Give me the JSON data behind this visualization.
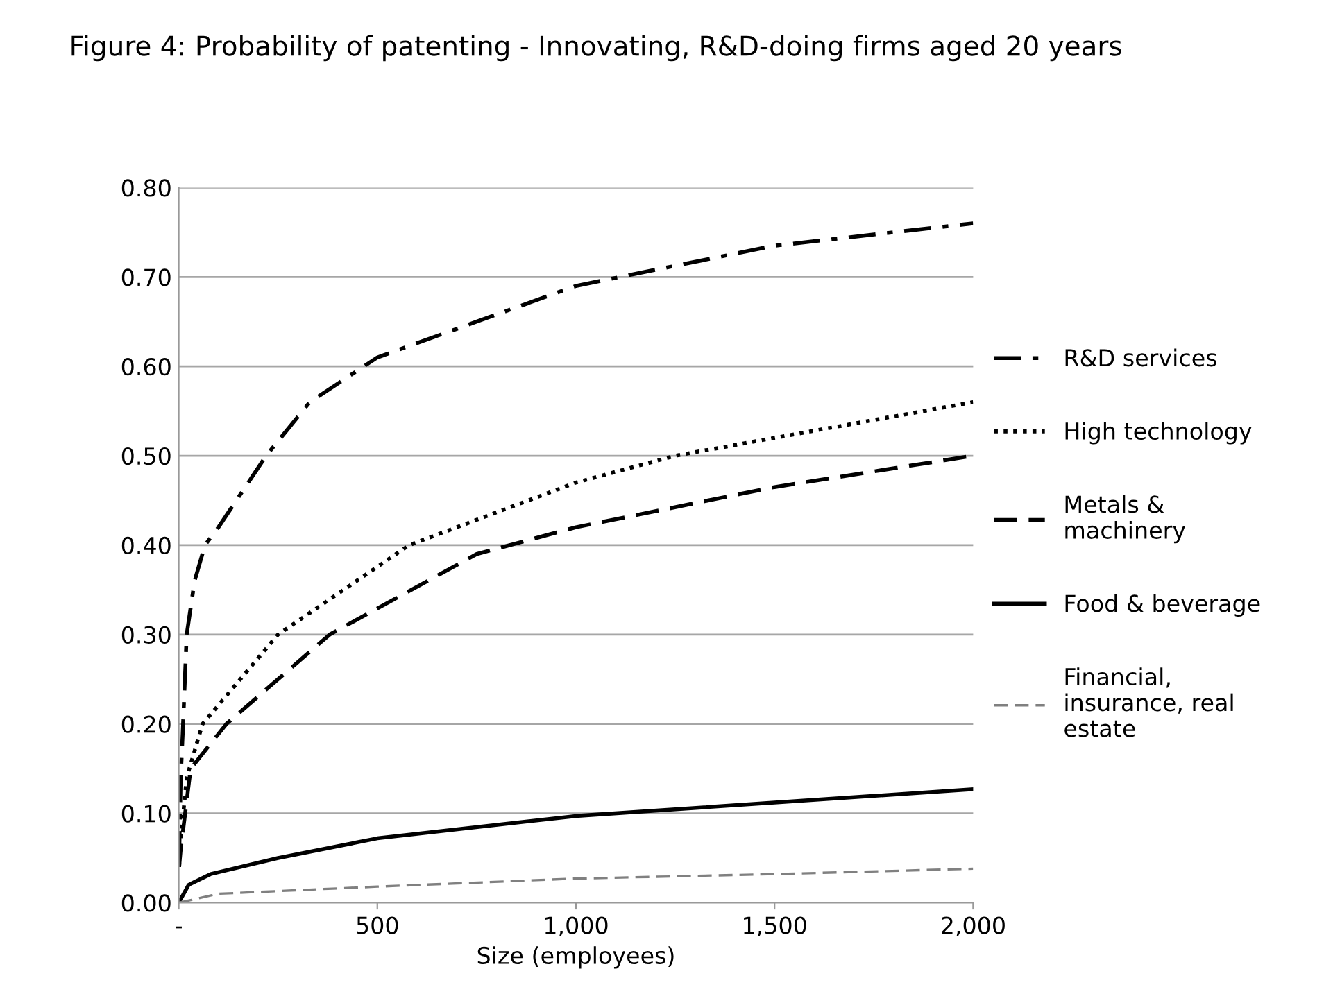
{
  "chart_data": {
    "type": "line",
    "title": "Figure 4: Probability of patenting - Innovating, R&D-doing firms aged 20 years",
    "xlabel": "Size (employees)",
    "xlim": [
      0,
      2000
    ],
    "xticks": [
      {
        "value": 0,
        "label": "-"
      },
      {
        "value": 500,
        "label": "500"
      },
      {
        "value": 1000,
        "label": "1,000"
      },
      {
        "value": 1500,
        "label": "1,500"
      },
      {
        "value": 2000,
        "label": "2,000"
      }
    ],
    "ylim": [
      0,
      0.8
    ],
    "yticks": [
      {
        "value": 0,
        "label": "0.00"
      },
      {
        "value": 0.1,
        "label": "0.10"
      },
      {
        "value": 0.2,
        "label": "0.20"
      },
      {
        "value": 0.3,
        "label": "0.30"
      },
      {
        "value": 0.4,
        "label": "0.40"
      },
      {
        "value": 0.5,
        "label": "0.50"
      },
      {
        "value": 0.6,
        "label": "0.60"
      },
      {
        "value": 0.7,
        "label": "0.70"
      },
      {
        "value": 0.8,
        "label": "0.80"
      }
    ],
    "grid": "y",
    "legend": "right",
    "marker": "none",
    "series": [
      {
        "name": "R&D services",
        "color": "#000000",
        "line_style": "dashdot",
        "x": [
          1,
          5,
          10,
          20,
          40,
          66,
          100,
          220,
          330,
          500,
          750,
          1000,
          1500,
          2000
        ],
        "values": [
          0.05,
          0.14,
          0.19,
          0.3,
          0.36,
          0.4,
          0.42,
          0.5,
          0.56,
          0.61,
          0.65,
          0.69,
          0.735,
          0.76
        ]
      },
      {
        "name": "High technology",
        "color": "#000000",
        "line_style": "dotted",
        "x": [
          1,
          5,
          20,
          60,
          250,
          580,
          1000,
          1250,
          1500,
          2000
        ],
        "values": [
          0.04,
          0.07,
          0.14,
          0.2,
          0.3,
          0.4,
          0.47,
          0.5,
          0.52,
          0.56
        ]
      },
      {
        "name": "Metals &\nmachinery",
        "color": "#000000",
        "line_style": "dashed",
        "x": [
          1,
          5,
          30,
          120,
          380,
          750,
          1000,
          1500,
          2000
        ],
        "values": [
          0.04,
          0.06,
          0.15,
          0.2,
          0.3,
          0.39,
          0.42,
          0.465,
          0.5
        ]
      },
      {
        "name": "Food & beverage",
        "color": "#000000",
        "line_style": "solid",
        "x": [
          0,
          25,
          80,
          250,
          500,
          1000,
          1500,
          2000
        ],
        "values": [
          0.0,
          0.02,
          0.032,
          0.05,
          0.072,
          0.097,
          0.112,
          0.127
        ]
      },
      {
        "name": "Financial,\ninsurance, real\nestate",
        "color": "#808080",
        "line_style": "dashed",
        "x": [
          0,
          100,
          500,
          1000,
          1500,
          2000
        ],
        "values": [
          0.0,
          0.01,
          0.018,
          0.027,
          0.032,
          0.038
        ]
      }
    ]
  }
}
